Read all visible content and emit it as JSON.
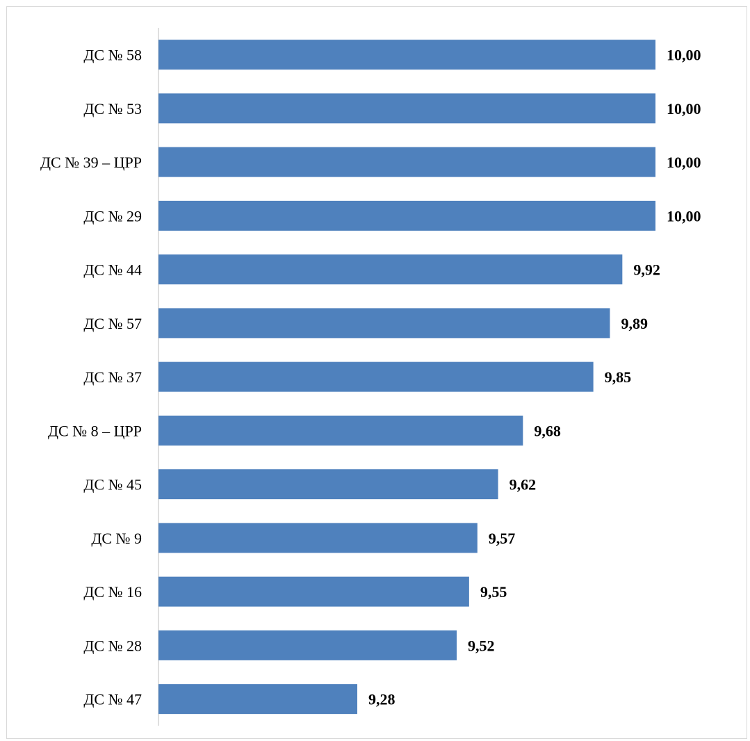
{
  "chart_data": {
    "type": "bar",
    "orientation": "horizontal",
    "categories": [
      "ДС № 58",
      "ДС № 53",
      "ДС № 39 – ЦРР",
      "ДС № 29",
      "ДС № 44",
      "ДС № 57",
      "ДС № 37",
      "ДС № 8 – ЦРР",
      "ДС № 45",
      "ДС № 9",
      "ДС № 16",
      "ДС № 28",
      "ДС № 47"
    ],
    "values": [
      10.0,
      10.0,
      10.0,
      10.0,
      9.92,
      9.89,
      9.85,
      9.68,
      9.62,
      9.57,
      9.55,
      9.52,
      9.28
    ],
    "value_labels": [
      "10,00",
      "10,00",
      "10,00",
      "10,00",
      "9,92",
      "9,89",
      "9,85",
      "9,68",
      "9,62",
      "9,57",
      "9,55",
      "9,52",
      "9,28"
    ],
    "xlim": [
      8.8,
      10.0
    ],
    "grid": false,
    "legend": "none",
    "bar_color": "#4f81bd",
    "axis_color": "#bfbfbf"
  }
}
